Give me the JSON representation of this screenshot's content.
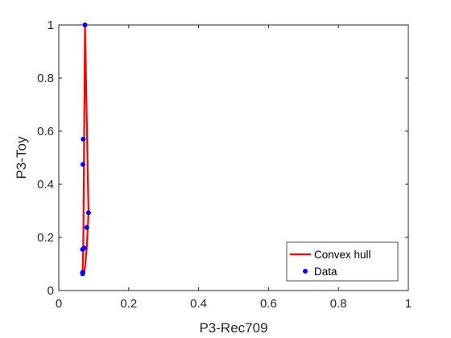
{
  "chart_data": {
    "type": "line",
    "xlabel": "P3-Rec709",
    "ylabel": "P3-Toy",
    "xlim": [
      0,
      1
    ],
    "ylim": [
      0,
      1
    ],
    "xticks": [
      "0",
      "0.2",
      "0.4",
      "0.6",
      "0.8",
      "1"
    ],
    "yticks": [
      "0",
      "0.2",
      "0.4",
      "0.6",
      "0.8",
      "1"
    ],
    "grid": false,
    "legend_position": "bottom-right",
    "series": [
      {
        "name": "Convex hull",
        "style": "line",
        "color": "#ff0000",
        "x": [
          0.068,
          0.07,
          0.075,
          0.085,
          0.08,
          0.073,
          0.068
        ],
        "y": [
          0.068,
          0.155,
          1.0,
          0.293,
          0.16,
          0.063,
          0.068
        ]
      },
      {
        "name": "Data",
        "style": "markers",
        "color": "#0000ff",
        "x": [
          0.068,
          0.069,
          0.07,
          0.068,
          0.068,
          0.075,
          0.085,
          0.08,
          0.073,
          0.068
        ],
        "y": [
          0.068,
          0.475,
          0.57,
          0.155,
          0.063,
          1.0,
          0.293,
          0.237,
          0.16,
          0.068
        ]
      }
    ]
  }
}
